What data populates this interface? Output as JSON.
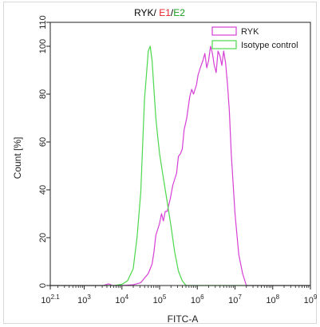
{
  "chart_data": {
    "type": "line",
    "title_parts": [
      {
        "text": "RYK",
        "color": "#000000"
      },
      {
        "text": "/ ",
        "color": "#000000"
      },
      {
        "text": "E1",
        "color": "#e8202a"
      },
      {
        "text": "/",
        "color": "#000000"
      },
      {
        "text": "E2",
        "color": "#1a9e1a"
      }
    ],
    "xlabel": "FITC-A",
    "ylabel": "Count [%]",
    "xscale": "log",
    "xlim_exp": [
      2.1,
      9
    ],
    "ylim": [
      0,
      110
    ],
    "yticks": [
      0,
      20,
      40,
      60,
      80,
      100,
      110
    ],
    "xticks": [
      {
        "exp": 2.1,
        "base": "10",
        "sup": "2.1"
      },
      {
        "exp": 3,
        "base": "10",
        "sup": "3"
      },
      {
        "exp": 4,
        "base": "10",
        "sup": "4"
      },
      {
        "exp": 5,
        "base": "10",
        "sup": "5"
      },
      {
        "exp": 6,
        "base": "10",
        "sup": "6"
      },
      {
        "exp": 7,
        "base": "10",
        "sup": "7"
      },
      {
        "exp": 8,
        "base": "10",
        "sup": "8"
      },
      {
        "exp": 9,
        "base": "10",
        "sup": "9"
      }
    ],
    "legend_position": "top-right",
    "series": [
      {
        "name": "RYK",
        "color": "#d63fd6",
        "log10_x": [
          2.1,
          3.5,
          3.65,
          3.75,
          4.0,
          4.3,
          4.5,
          4.7,
          4.8,
          4.85,
          4.9,
          5.0,
          5.05,
          5.1,
          5.15,
          5.2,
          5.28,
          5.35,
          5.45,
          5.5,
          5.55,
          5.6,
          5.65,
          5.72,
          5.8,
          5.85,
          5.9,
          5.98,
          6.02,
          6.1,
          6.15,
          6.2,
          6.25,
          6.3,
          6.35,
          6.4,
          6.45,
          6.5,
          6.55,
          6.6,
          6.65,
          6.7,
          6.75,
          6.8,
          6.85,
          6.9,
          7.0,
          7.1,
          7.2,
          7.3,
          9.0
        ],
        "y": [
          0,
          0,
          0.7,
          0,
          0,
          0.3,
          1.2,
          5,
          9,
          14,
          21,
          26,
          30,
          27,
          31,
          31,
          36,
          42,
          47,
          54,
          55,
          57,
          65,
          70,
          79,
          82,
          80,
          84,
          88,
          92,
          94,
          97,
          91,
          94,
          100,
          97,
          92,
          89,
          98,
          96,
          92,
          98,
          93,
          84,
          73,
          55,
          30,
          13,
          5,
          0,
          0
        ]
      },
      {
        "name": "Isotype control",
        "color": "#4bd84b",
        "log10_x": [
          2.1,
          3.8,
          4.0,
          4.15,
          4.3,
          4.4,
          4.5,
          4.55,
          4.6,
          4.65,
          4.7,
          4.75,
          4.8,
          4.85,
          4.9,
          4.95,
          5.0,
          5.1,
          5.2,
          5.3,
          5.4,
          5.5,
          5.6,
          5.7,
          9.0
        ],
        "y": [
          0,
          0,
          0.5,
          2,
          7,
          20,
          39,
          59,
          78,
          88,
          98,
          100,
          94,
          82,
          70,
          62,
          55,
          45,
          35,
          25,
          14,
          6,
          2,
          0,
          0
        ]
      }
    ]
  }
}
